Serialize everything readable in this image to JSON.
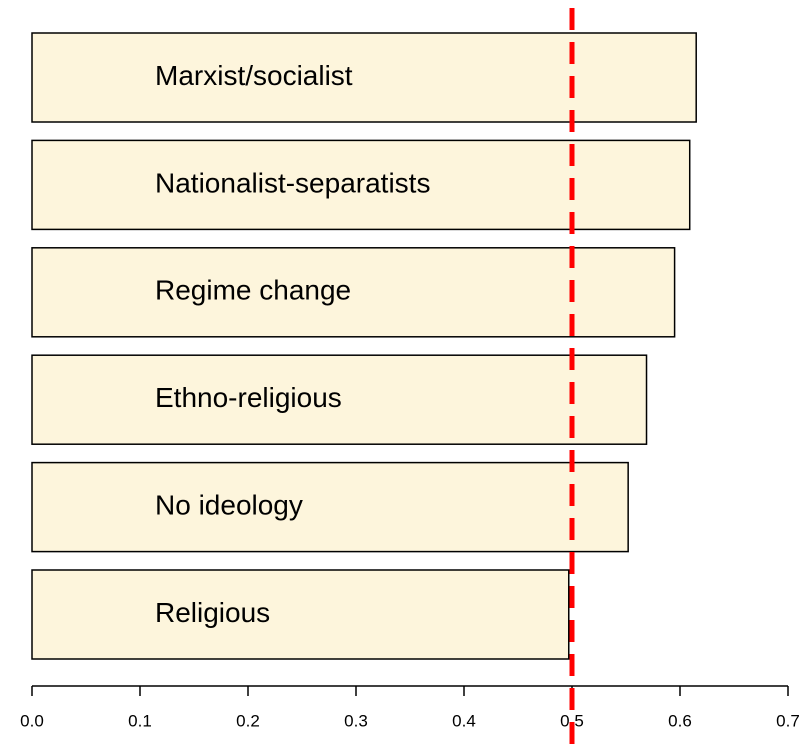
{
  "chart_data": {
    "type": "barh",
    "categories": [
      "Marxist/socialist",
      "Nationalist-separatists",
      "Regime change",
      "Ethno-religious",
      "No ideology",
      "Religious"
    ],
    "values": [
      0.615,
      0.609,
      0.595,
      0.569,
      0.552,
      0.497
    ],
    "color": "#fdf5dc",
    "xlim": [
      0,
      0.7
    ],
    "xticks": [
      {
        "value": 0,
        "label": "0.0"
      },
      0.1,
      0.2,
      0.3,
      0.4,
      0.5,
      0.6,
      0.7
    ],
    "reference_line": {
      "value": 0.5,
      "color": "#ff0000"
    }
  }
}
